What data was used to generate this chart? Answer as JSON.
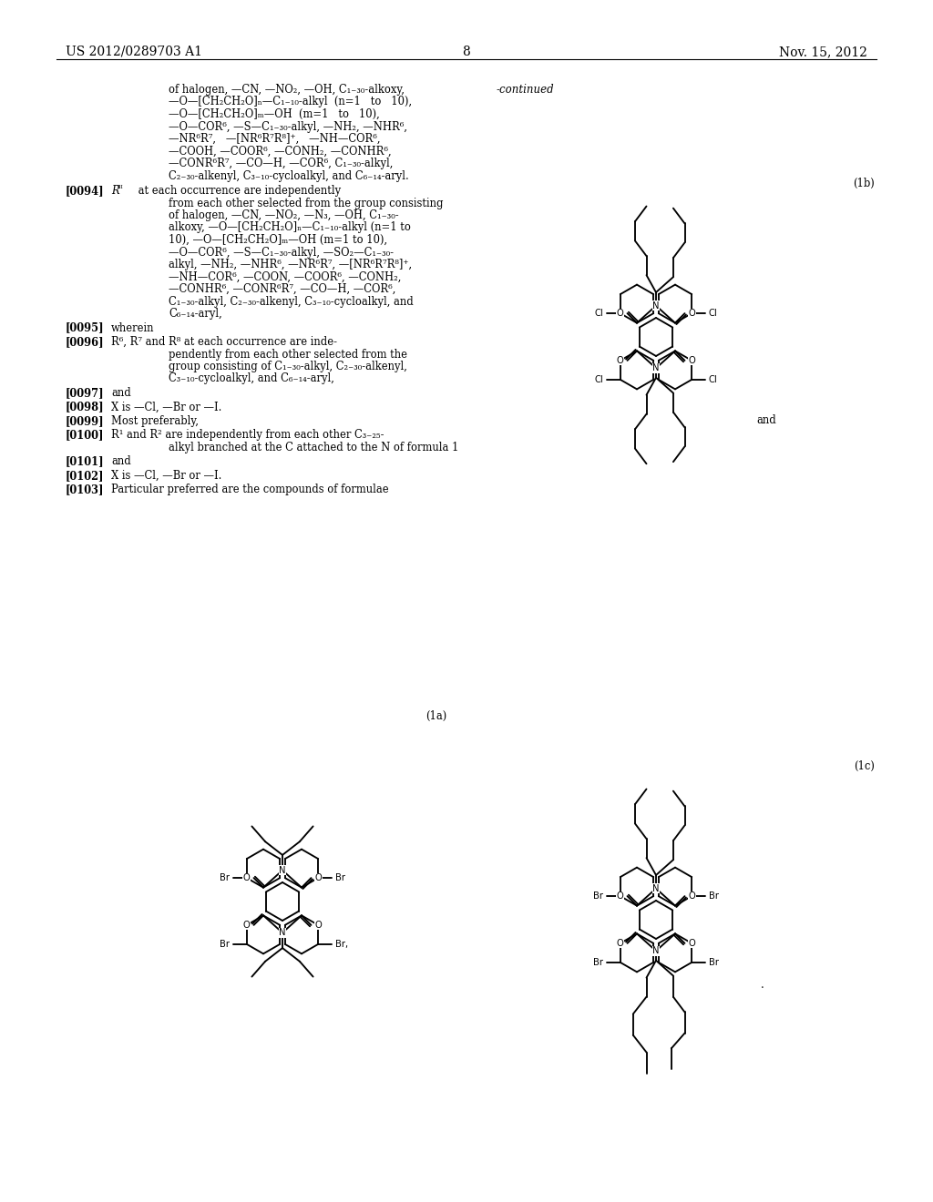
{
  "bg": "#ffffff",
  "header_left": "US 2012/0289703 A1",
  "header_center": "8",
  "header_right": "Nov. 15, 2012",
  "continued": "-continued",
  "label_1b": "(1b)",
  "label_1a": "(1a)",
  "label_1c": "(1c)",
  "and_label": "and"
}
